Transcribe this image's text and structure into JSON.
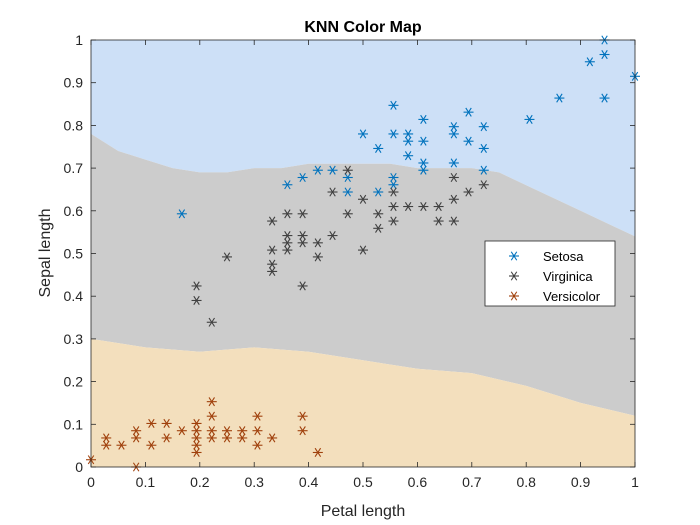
{
  "chart_data": {
    "type": "scatter",
    "title": "KNN Color Map",
    "xlabel": "Petal length",
    "ylabel": "Sepal length",
    "xlim": [
      0,
      1
    ],
    "ylim": [
      0,
      1
    ],
    "xticks": [
      "0",
      "0.1",
      "0.2",
      "0.3",
      "0.4",
      "0.5",
      "0.6",
      "0.7",
      "0.8",
      "0.9",
      "1"
    ],
    "yticks": [
      "0",
      "0.1",
      "0.2",
      "0.3",
      "0.4",
      "0.5",
      "0.6",
      "0.7",
      "0.8",
      "0.9",
      "1"
    ],
    "grid": false,
    "legend_position": "right",
    "regions": [
      {
        "class": "Setosa",
        "color": "#cde0f7"
      },
      {
        "class": "Virginica",
        "color": "#cccccc"
      },
      {
        "class": "Versicolor",
        "color": "#f3dfbd"
      }
    ],
    "boundaries": {
      "upper": [
        [
          0,
          0.78
        ],
        [
          0.05,
          0.74
        ],
        [
          0.1,
          0.72
        ],
        [
          0.15,
          0.7
        ],
        [
          0.2,
          0.69
        ],
        [
          0.25,
          0.69
        ],
        [
          0.3,
          0.7
        ],
        [
          0.35,
          0.7
        ],
        [
          0.4,
          0.71
        ],
        [
          0.45,
          0.71
        ],
        [
          0.5,
          0.71
        ],
        [
          0.55,
          0.71
        ],
        [
          0.6,
          0.7
        ],
        [
          0.65,
          0.7
        ],
        [
          0.7,
          0.7
        ],
        [
          0.75,
          0.69
        ],
        [
          0.8,
          0.66
        ],
        [
          0.85,
          0.63
        ],
        [
          0.9,
          0.6
        ],
        [
          0.95,
          0.57
        ],
        [
          1.0,
          0.54
        ]
      ],
      "lower": [
        [
          0,
          0.3
        ],
        [
          0.1,
          0.28
        ],
        [
          0.2,
          0.27
        ],
        [
          0.3,
          0.28
        ],
        [
          0.4,
          0.27
        ],
        [
          0.5,
          0.25
        ],
        [
          0.6,
          0.23
        ],
        [
          0.7,
          0.22
        ],
        [
          0.8,
          0.19
        ],
        [
          0.9,
          0.15
        ],
        [
          1.0,
          0.12
        ]
      ]
    },
    "series": [
      {
        "name": "Setosa",
        "color": "#0072bd",
        "marker": "asterisk",
        "points": [
          [
            0.167,
            0.593
          ],
          [
            0.361,
            0.661
          ],
          [
            0.389,
            0.678
          ],
          [
            0.417,
            0.695
          ],
          [
            0.444,
            0.695
          ],
          [
            0.472,
            0.644
          ],
          [
            0.472,
            0.678
          ],
          [
            0.5,
            0.78
          ],
          [
            0.528,
            0.644
          ],
          [
            0.528,
            0.746
          ],
          [
            0.556,
            0.847
          ],
          [
            0.556,
            0.78
          ],
          [
            0.556,
            0.661
          ],
          [
            0.556,
            0.678
          ],
          [
            0.583,
            0.763
          ],
          [
            0.583,
            0.78
          ],
          [
            0.583,
            0.729
          ],
          [
            0.611,
            0.814
          ],
          [
            0.611,
            0.763
          ],
          [
            0.611,
            0.712
          ],
          [
            0.611,
            0.695
          ],
          [
            0.667,
            0.797
          ],
          [
            0.667,
            0.78
          ],
          [
            0.667,
            0.712
          ],
          [
            0.694,
            0.831
          ],
          [
            0.694,
            0.763
          ],
          [
            0.722,
            0.797
          ],
          [
            0.722,
            0.746
          ],
          [
            0.722,
            0.695
          ],
          [
            0.806,
            0.814
          ],
          [
            0.861,
            0.864
          ],
          [
            0.917,
            0.949
          ],
          [
            0.944,
            1.0
          ],
          [
            0.944,
            0.966
          ],
          [
            0.944,
            0.864
          ],
          [
            1.0,
            0.915
          ]
        ]
      },
      {
        "name": "Virginica",
        "color": "#404040",
        "marker": "asterisk",
        "points": [
          [
            0.194,
            0.424
          ],
          [
            0.194,
            0.39
          ],
          [
            0.222,
            0.339
          ],
          [
            0.25,
            0.492
          ],
          [
            0.333,
            0.576
          ],
          [
            0.333,
            0.508
          ],
          [
            0.333,
            0.475
          ],
          [
            0.333,
            0.458
          ],
          [
            0.361,
            0.593
          ],
          [
            0.361,
            0.542
          ],
          [
            0.361,
            0.525
          ],
          [
            0.361,
            0.508
          ],
          [
            0.389,
            0.593
          ],
          [
            0.389,
            0.542
          ],
          [
            0.389,
            0.525
          ],
          [
            0.389,
            0.424
          ],
          [
            0.417,
            0.525
          ],
          [
            0.417,
            0.492
          ],
          [
            0.444,
            0.542
          ],
          [
            0.472,
            0.695
          ],
          [
            0.472,
            0.593
          ],
          [
            0.444,
            0.644
          ],
          [
            0.5,
            0.627
          ],
          [
            0.5,
            0.508
          ],
          [
            0.528,
            0.593
          ],
          [
            0.528,
            0.559
          ],
          [
            0.556,
            0.644
          ],
          [
            0.556,
            0.61
          ],
          [
            0.556,
            0.576
          ],
          [
            0.583,
            0.61
          ],
          [
            0.611,
            0.61
          ],
          [
            0.639,
            0.61
          ],
          [
            0.639,
            0.576
          ],
          [
            0.667,
            0.678
          ],
          [
            0.667,
            0.627
          ],
          [
            0.667,
            0.576
          ],
          [
            0.694,
            0.644
          ],
          [
            0.722,
            0.661
          ]
        ]
      },
      {
        "name": "Versicolor",
        "color": "#a0410d",
        "marker": "asterisk",
        "points": [
          [
            0.0,
            0.017
          ],
          [
            0.028,
            0.068
          ],
          [
            0.028,
            0.051
          ],
          [
            0.056,
            0.051
          ],
          [
            0.083,
            0.085
          ],
          [
            0.083,
            0.068
          ],
          [
            0.083,
            0.0
          ],
          [
            0.111,
            0.102
          ],
          [
            0.111,
            0.051
          ],
          [
            0.139,
            0.102
          ],
          [
            0.139,
            0.068
          ],
          [
            0.167,
            0.085
          ],
          [
            0.194,
            0.102
          ],
          [
            0.194,
            0.085
          ],
          [
            0.194,
            0.068
          ],
          [
            0.194,
            0.051
          ],
          [
            0.194,
            0.034
          ],
          [
            0.222,
            0.153
          ],
          [
            0.222,
            0.119
          ],
          [
            0.222,
            0.085
          ],
          [
            0.222,
            0.068
          ],
          [
            0.25,
            0.085
          ],
          [
            0.25,
            0.068
          ],
          [
            0.278,
            0.085
          ],
          [
            0.278,
            0.068
          ],
          [
            0.306,
            0.119
          ],
          [
            0.306,
            0.085
          ],
          [
            0.306,
            0.051
          ],
          [
            0.333,
            0.068
          ],
          [
            0.389,
            0.119
          ],
          [
            0.389,
            0.085
          ],
          [
            0.417,
            0.034
          ]
        ]
      }
    ]
  }
}
